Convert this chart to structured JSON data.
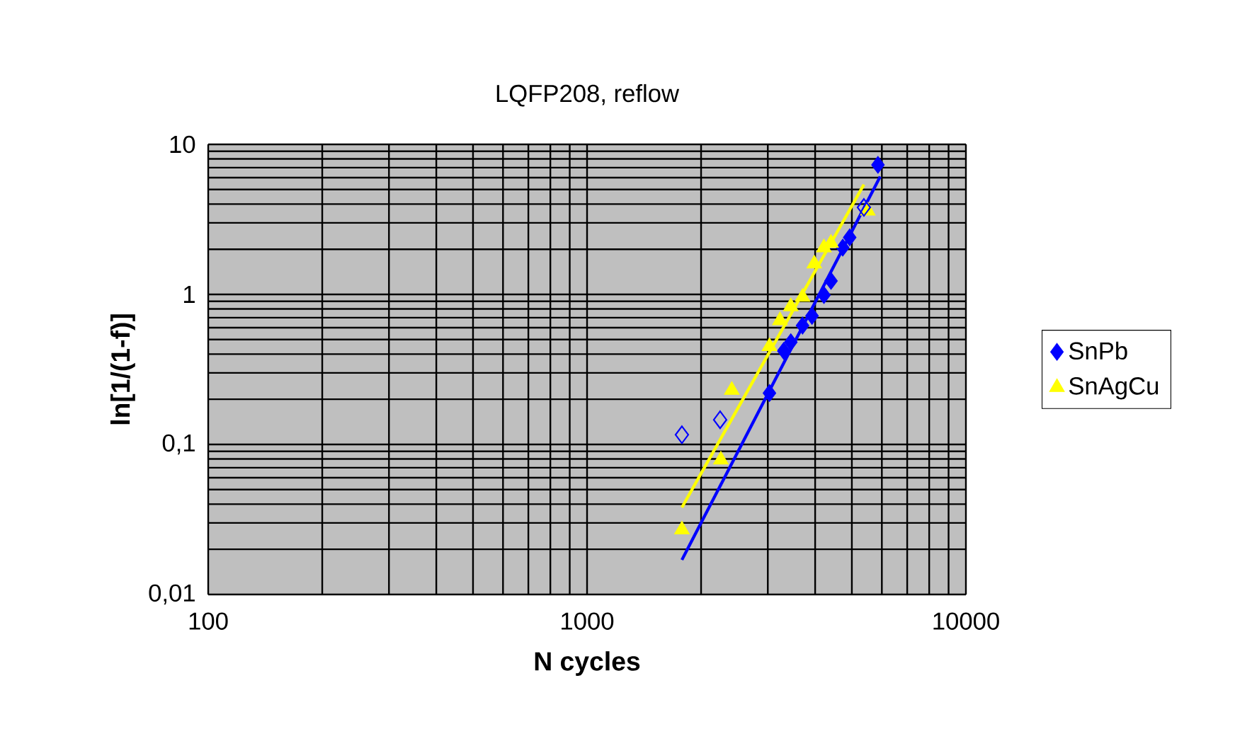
{
  "chart_data": {
    "type": "scatter",
    "title": "LQFP208, reflow",
    "xlabel": "N cycles",
    "ylabel": "ln[1/(1-f)]",
    "log": "xy",
    "grid": true,
    "legend": "right",
    "xlim": [
      100,
      10000
    ],
    "ylim": [
      0.01,
      10
    ],
    "xticks": [
      100,
      1000,
      10000
    ],
    "yticks": [
      {
        "value": 0.01,
        "label": "0,01"
      },
      {
        "value": 0.1,
        "label": "0,1"
      },
      {
        "value": 1,
        "label": "1"
      },
      {
        "value": 10,
        "label": "10"
      }
    ],
    "series": [
      {
        "name": "SnPb",
        "color": "#0000ff",
        "marker": "diamond",
        "x": [
          5860,
          4935,
          4730,
          4405,
          4220,
          3925,
          3705,
          3450,
          3305,
          3030
        ],
        "values": [
          7.3,
          2.4,
          2.05,
          1.23,
          0.99,
          0.72,
          0.62,
          0.48,
          0.42,
          0.22
        ]
      },
      {
        "name": "SnAgCu",
        "color": "#ffff00",
        "marker": "triangle",
        "x": [
          5510,
          4405,
          4220,
          3980,
          3705,
          3450,
          3230,
          3030,
          2410,
          2255,
          1780
        ],
        "values": [
          3.6,
          2.2,
          2.05,
          1.6,
          0.96,
          0.83,
          0.67,
          0.45,
          0.23,
          0.079,
          0.027
        ]
      },
      {
        "color": "#0000ff",
        "marker": "diamond",
        "x": [
          1780,
          2245,
          5380
        ],
        "values": [
          0.116,
          0.146,
          3.8
        ]
      },
      {
        "type": "line",
        "color": "#ffff00",
        "marker": "none",
        "line_style": "solid",
        "x": [
          1780,
          5380
        ],
        "values": [
          0.038,
          5.4
        ]
      },
      {
        "type": "line",
        "color": "#0000ff",
        "marker": "none",
        "line_style": "solid",
        "x": [
          1780,
          5940
        ],
        "values": [
          0.017,
          6.1
        ]
      }
    ]
  }
}
